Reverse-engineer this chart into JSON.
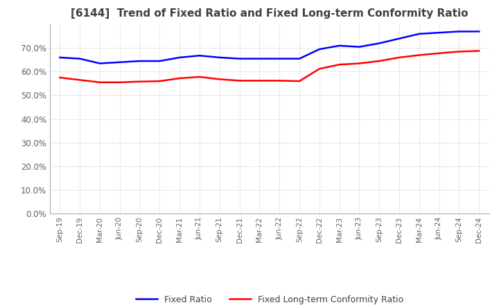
{
  "title": "[6144]  Trend of Fixed Ratio and Fixed Long-term Conformity Ratio",
  "x_labels": [
    "Sep-19",
    "Dec-19",
    "Mar-20",
    "Jun-20",
    "Sep-20",
    "Dec-20",
    "Mar-21",
    "Jun-21",
    "Sep-21",
    "Dec-21",
    "Mar-22",
    "Jun-22",
    "Sep-22",
    "Dec-22",
    "Mar-23",
    "Jun-23",
    "Sep-23",
    "Dec-23",
    "Mar-24",
    "Jun-24",
    "Sep-24",
    "Dec-24"
  ],
  "fixed_ratio": [
    0.66,
    0.655,
    0.635,
    0.64,
    0.645,
    0.645,
    0.66,
    0.668,
    0.66,
    0.655,
    0.655,
    0.655,
    0.655,
    0.695,
    0.71,
    0.705,
    0.72,
    0.74,
    0.76,
    0.765,
    0.77,
    0.77
  ],
  "fixed_lt_ratio": [
    0.575,
    0.565,
    0.555,
    0.555,
    0.558,
    0.56,
    0.572,
    0.578,
    0.568,
    0.562,
    0.562,
    0.562,
    0.56,
    0.612,
    0.63,
    0.635,
    0.645,
    0.66,
    0.67,
    0.678,
    0.685,
    0.688
  ],
  "fixed_ratio_color": "#0000FF",
  "fixed_lt_ratio_color": "#FF0000",
  "ylim": [
    0.0,
    0.8
  ],
  "yticks": [
    0.0,
    0.1,
    0.2,
    0.3,
    0.4,
    0.5,
    0.6,
    0.7
  ],
  "background_color": "#FFFFFF",
  "grid_color": "#AAAAAA",
  "legend_fixed_ratio": "Fixed Ratio",
  "legend_fixed_lt_ratio": "Fixed Long-term Conformity Ratio",
  "title_fontsize": 11
}
